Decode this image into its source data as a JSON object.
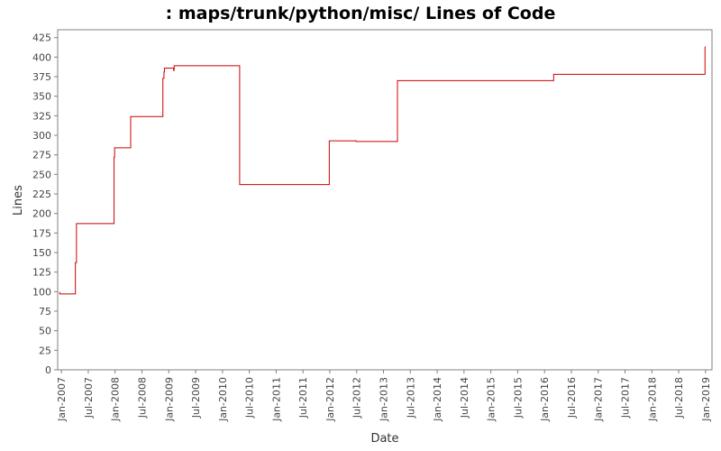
{
  "chart_data": {
    "type": "line",
    "title": ": maps/trunk/python/misc/ Lines of Code",
    "xlabel": "Date",
    "ylabel": "Lines",
    "ylim": [
      0,
      435
    ],
    "xlim": [
      2006.93,
      2019.12
    ],
    "yticks": [
      0,
      25,
      50,
      75,
      100,
      125,
      150,
      175,
      200,
      225,
      250,
      275,
      300,
      325,
      350,
      375,
      400,
      425
    ],
    "xticks": [
      {
        "label": "Jan-2007",
        "x": 2007.0
      },
      {
        "label": "Jul-2007",
        "x": 2007.5
      },
      {
        "label": "Jan-2008",
        "x": 2008.0
      },
      {
        "label": "Jul-2008",
        "x": 2008.5
      },
      {
        "label": "Jan-2009",
        "x": 2009.0
      },
      {
        "label": "Jul-2009",
        "x": 2009.5
      },
      {
        "label": "Jan-2010",
        "x": 2010.0
      },
      {
        "label": "Jul-2010",
        "x": 2010.5
      },
      {
        "label": "Jan-2011",
        "x": 2011.0
      },
      {
        "label": "Jul-2011",
        "x": 2011.5
      },
      {
        "label": "Jan-2012",
        "x": 2012.0
      },
      {
        "label": "Jul-2012",
        "x": 2012.5
      },
      {
        "label": "Jan-2013",
        "x": 2013.0
      },
      {
        "label": "Jul-2013",
        "x": 2013.5
      },
      {
        "label": "Jan-2014",
        "x": 2014.0
      },
      {
        "label": "Jul-2014",
        "x": 2014.5
      },
      {
        "label": "Jan-2015",
        "x": 2015.0
      },
      {
        "label": "Jul-2015",
        "x": 2015.5
      },
      {
        "label": "Jan-2016",
        "x": 2016.0
      },
      {
        "label": "Jul-2016",
        "x": 2016.5
      },
      {
        "label": "Jan-2017",
        "x": 2017.0
      },
      {
        "label": "Jul-2017",
        "x": 2017.5
      },
      {
        "label": "Jan-2018",
        "x": 2018.0
      },
      {
        "label": "Jul-2018",
        "x": 2018.5
      },
      {
        "label": "Jan-2019",
        "x": 2019.0
      }
    ],
    "series": [
      {
        "name": "Lines of Code",
        "color": "#cc0000",
        "step": true,
        "points": [
          [
            2006.96,
            99
          ],
          [
            2006.97,
            97
          ],
          [
            2007.25,
            97
          ],
          [
            2007.26,
            137
          ],
          [
            2007.28,
            187
          ],
          [
            2007.97,
            187
          ],
          [
            2007.98,
            272
          ],
          [
            2007.99,
            284
          ],
          [
            2008.28,
            284
          ],
          [
            2008.29,
            324
          ],
          [
            2008.88,
            324
          ],
          [
            2008.89,
            373
          ],
          [
            2008.91,
            381
          ],
          [
            2008.92,
            386
          ],
          [
            2009.08,
            386
          ],
          [
            2009.09,
            383
          ],
          [
            2009.1,
            389
          ],
          [
            2010.31,
            389
          ],
          [
            2010.32,
            237
          ],
          [
            2011.98,
            237
          ],
          [
            2011.99,
            293
          ],
          [
            2012.48,
            293
          ],
          [
            2012.49,
            292
          ],
          [
            2013.25,
            292
          ],
          [
            2013.26,
            370
          ],
          [
            2016.16,
            370
          ],
          [
            2016.17,
            378
          ],
          [
            2018.98,
            378
          ],
          [
            2018.99,
            413
          ],
          [
            2019.0,
            413
          ]
        ]
      }
    ]
  }
}
